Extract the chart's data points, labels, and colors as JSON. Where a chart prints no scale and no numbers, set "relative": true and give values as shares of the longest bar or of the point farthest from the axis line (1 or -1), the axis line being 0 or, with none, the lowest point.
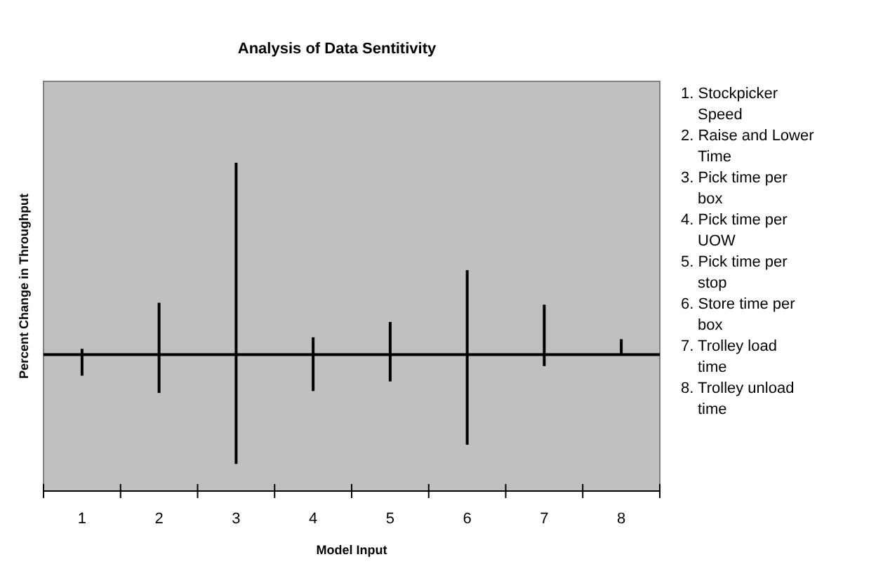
{
  "chart_data": {
    "type": "bar",
    "title": "Analysis of Data Sentitivity",
    "xlabel": "Model Input",
    "ylabel": "Percent Change in Throughput",
    "relative": true,
    "categories": [
      "1",
      "2",
      "3",
      "4",
      "5",
      "6",
      "7",
      "8"
    ],
    "series": [
      {
        "color": "#000000",
        "values": [
          0.03,
          0.27,
          1,
          0.09,
          0.17,
          0.44,
          0.26,
          0.08
        ]
      },
      {
        "color": "#000000",
        "values": [
          -0.11,
          -0.2,
          -0.57,
          -0.19,
          -0.14,
          -0.47,
          -0.06,
          null
        ]
      }
    ],
    "annotations": [
      "1. Stockpicker Speed",
      "2. Raise and Lower Time",
      "3. Pick time per box",
      "4. Pick time per UOW",
      "5. Pick time per stop",
      "6. Store time per box",
      "7. Trolley load time",
      "8. Trolley unload time"
    ]
  }
}
